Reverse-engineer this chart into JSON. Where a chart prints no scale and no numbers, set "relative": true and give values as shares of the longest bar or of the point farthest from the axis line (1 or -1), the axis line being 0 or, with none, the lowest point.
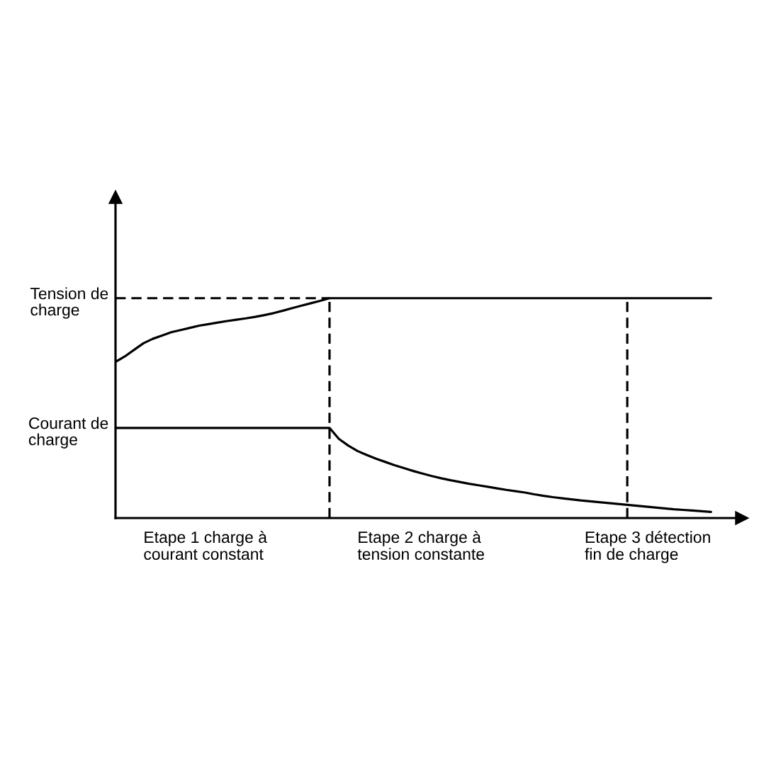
{
  "chart_data": {
    "type": "line",
    "relative": true,
    "categories": [
      null,
      null,
      null,
      null,
      null,
      null,
      null,
      null,
      null,
      null,
      null,
      null,
      null,
      null,
      null,
      null,
      null,
      null,
      null,
      null,
      null,
      null,
      null,
      null,
      null,
      null,
      null,
      null,
      null,
      null,
      null,
      null,
      null,
      null,
      null,
      null,
      null,
      null,
      null,
      null,
      null,
      null,
      null,
      null,
      null,
      null,
      null,
      null,
      null,
      null,
      null,
      null,
      null,
      null,
      null,
      null,
      null,
      null,
      null,
      null,
      null,
      null,
      null,
      null,
      null
    ],
    "series": [
      {
        "name": "Tension de\ncharge",
        "color": "#000000",
        "values": [
          0.71,
          0.735,
          0.765,
          0.795,
          0.815,
          0.83,
          0.845,
          0.855,
          0.865,
          0.875,
          0.882,
          0.889,
          0.896,
          0.902,
          0.908,
          0.915,
          0.923,
          0.932,
          0.943,
          0.955,
          0.966,
          0.977,
          0.988,
          1.0,
          1.0,
          1.0,
          1.0,
          1.0,
          1.0,
          1.0,
          1.0,
          1.0,
          1.0,
          1.0,
          1.0,
          1.0,
          1.0,
          1.0,
          1.0,
          1.0,
          1.0,
          1.0,
          1.0,
          1.0,
          1.0,
          1.0,
          1.0,
          1.0,
          1.0,
          1.0,
          1.0,
          1.0,
          1.0,
          1.0,
          1.0,
          1.0,
          1.0,
          1.0,
          1.0,
          1.0,
          1.0,
          1.0,
          1.0,
          1.0,
          1.0
        ]
      },
      {
        "name": "Courant de\ncharge",
        "color": "#000000",
        "values": [
          0.41,
          0.41,
          0.41,
          0.41,
          0.41,
          0.41,
          0.41,
          0.41,
          0.41,
          0.41,
          0.41,
          0.41,
          0.41,
          0.41,
          0.41,
          0.41,
          0.41,
          0.41,
          0.41,
          0.41,
          0.41,
          0.41,
          0.41,
          0.41,
          0.36,
          0.33,
          0.305,
          0.287,
          0.27,
          0.255,
          0.24,
          0.227,
          0.214,
          0.202,
          0.191,
          0.181,
          0.172,
          0.164,
          0.156,
          0.149,
          0.142,
          0.135,
          0.128,
          0.122,
          0.116,
          0.108,
          0.101,
          0.095,
          0.09,
          0.085,
          0.08,
          0.076,
          0.072,
          0.068,
          0.064,
          0.06,
          0.056,
          0.052,
          0.048,
          0.044,
          0.04,
          0.037,
          0.034,
          0.031,
          0.028
        ]
      }
    ],
    "ref_lines": [
      {
        "axis": "y",
        "value": 1.0,
        "color": "#000000",
        "line_style": "dashed"
      }
    ],
    "annotations": [
      "Etape 1 charge à\ncourant constant",
      "Etape 2 charge à\ntension constante",
      "Etape 3 détection\nfin de charge"
    ]
  }
}
